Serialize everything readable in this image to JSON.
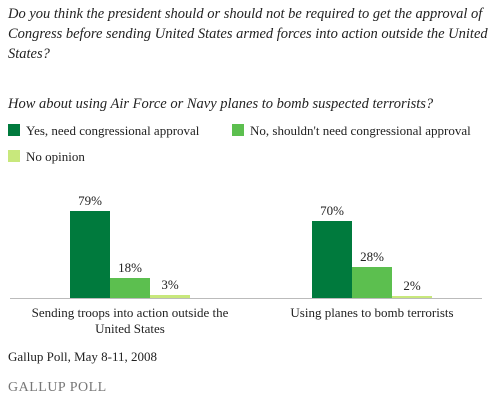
{
  "chart_data": {
    "type": "bar",
    "title": "Do you think the president should or should not be required to get the approval of Congress before sending United States armed forces into action outside the United States?",
    "subtitle": "How about using Air Force or Navy planes to bomb suspected terrorists?",
    "categories": [
      "Sending troops into action outside the United States",
      "Using planes to bomb terrorists"
    ],
    "series": [
      {
        "name": "Yes, need congressional approval",
        "color": "#007a3d",
        "values": [
          79,
          70
        ],
        "value_labels": [
          "79%",
          "70%"
        ]
      },
      {
        "name": "No, shouldn't need congressional approval",
        "color": "#5cbf4f",
        "values": [
          18,
          28
        ],
        "value_labels": [
          "18%",
          "28%"
        ]
      },
      {
        "name": "No opinion",
        "color": "#c8e87c",
        "values": [
          3,
          2
        ],
        "value_labels": [
          "3%",
          "2%"
        ]
      }
    ],
    "source": "Gallup Poll, May 8-11, 2008",
    "logo": "GALLUP POLL"
  }
}
